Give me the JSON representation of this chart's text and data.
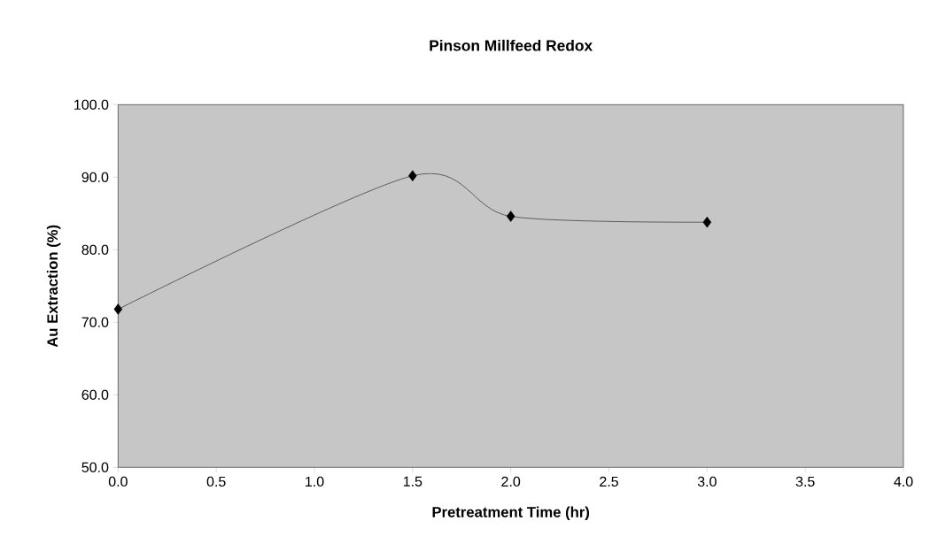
{
  "chart_data": {
    "type": "line",
    "title": "Pinson Millfeed Redox",
    "xlabel": "Pretreatment Time (hr)",
    "ylabel": "Au Extraction (%)",
    "x": [
      0,
      1.5,
      2,
      3
    ],
    "series": [
      {
        "color": "#000000",
        "values": [
          71.8,
          90.2,
          84.6,
          83.8
        ]
      }
    ],
    "marker": "diamond",
    "line_style": "solid",
    "xlim": [
      0,
      4
    ],
    "ylim": [
      50,
      100
    ],
    "xticks": [
      {
        "value": 0,
        "label": "0.0"
      },
      {
        "value": 0.5,
        "label": "0.5"
      },
      {
        "value": 1,
        "label": "1.0"
      },
      {
        "value": 1.5,
        "label": "1.5"
      },
      {
        "value": 2,
        "label": "2.0"
      },
      {
        "value": 2.5,
        "label": "2.5"
      },
      {
        "value": 3,
        "label": "3.0"
      },
      {
        "value": 3.5,
        "label": "3.5"
      },
      {
        "value": 4,
        "label": "4.0"
      }
    ],
    "yticks": [
      {
        "value": 50,
        "label": "50.0"
      },
      {
        "value": 60,
        "label": "60.0"
      },
      {
        "value": 70,
        "label": "70.0"
      },
      {
        "value": 80,
        "label": "80.0"
      },
      {
        "value": 90,
        "label": "90.0"
      },
      {
        "value": 100,
        "label": "100.0"
      }
    ],
    "grid": false
  }
}
